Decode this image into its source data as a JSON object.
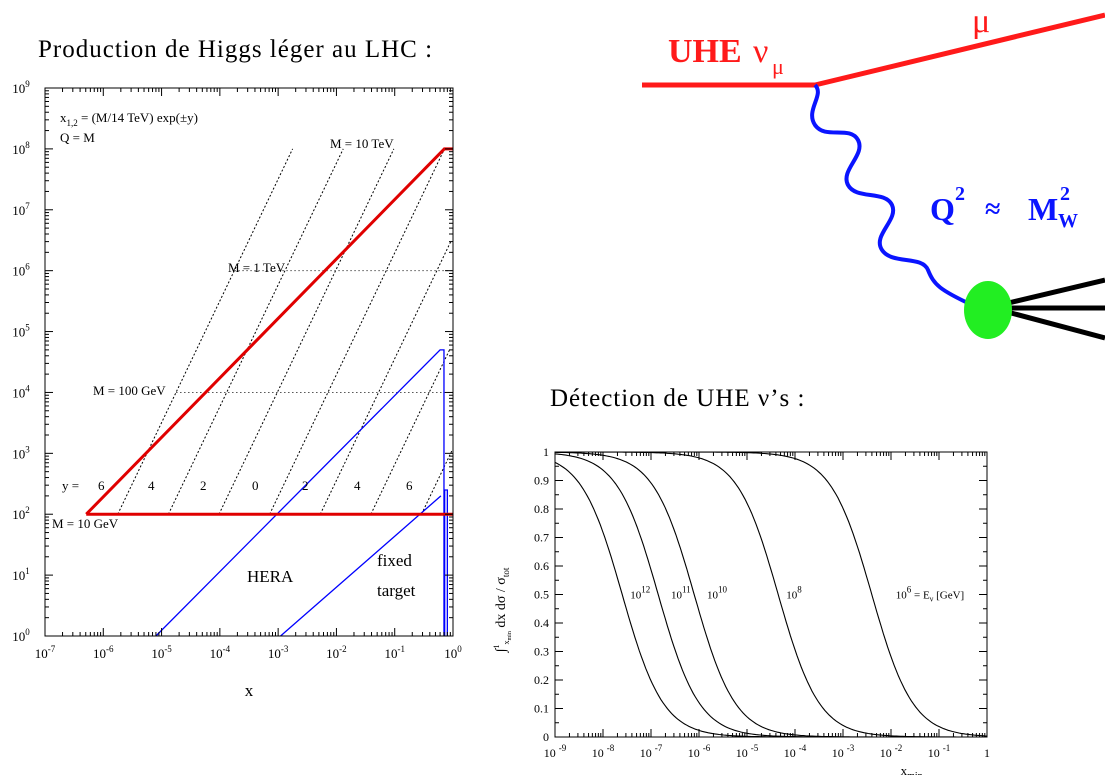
{
  "left_heading": "Production de Higgs léger au LHC :",
  "right_heading": "Détection de UHE ν’s :",
  "diagram": {
    "incoming_label": "UHE",
    "incoming_symbol": "ν",
    "incoming_sub": "μ",
    "outgoing_label": "μ",
    "q_label": "Q",
    "q_sup": "2",
    "approx": "≈",
    "m_label": "M",
    "m_sup": "2",
    "m_sub": "W",
    "colors": {
      "lepton": "#ff1a1a",
      "boson": "#0a14ff",
      "blob": "#22ee22",
      "jets": "#000000"
    }
  },
  "chart_data": [
    {
      "type": "line",
      "xscale": "log",
      "yscale": "log",
      "xlim": [
        1e-07,
        1
      ],
      "ylim": [
        1,
        1000000000.0
      ],
      "xlabel": "x",
      "x_ticks": [
        "10-7",
        "10-6",
        "10-5",
        "10-4",
        "10-3",
        "10-2",
        "10-1",
        "100"
      ],
      "y_ticks": [
        "100",
        "101",
        "102",
        "103",
        "104",
        "105",
        "106",
        "107",
        "108",
        "109"
      ],
      "formula_lines": [
        "x1,2 = (M/14 TeV) exp(±y)",
        "Q = M"
      ],
      "formula_base": "x",
      "formula_sub": "1,2",
      "formula_rest": " = (M/14 TeV) exp(±y)",
      "formula_q": "Q = M",
      "annotations": {
        "m10tev": "M = 10 TeV",
        "m1tev": "M = 1 TeV",
        "m100gev": "M = 100 GeV",
        "m10gev": "M = 10 GeV",
        "y_eq": "y =",
        "hera": "HERA",
        "fixed1": "fixed",
        "fixed2": "target"
      },
      "rapidity_labels": [
        "6",
        "4",
        "2",
        "0",
        "2",
        "4",
        "6"
      ],
      "rapidity_values": [
        6,
        4,
        2,
        0,
        -2,
        -4,
        -6
      ],
      "mass_levels_gev": [
        10,
        100,
        1000,
        10000
      ],
      "lhc_boundary": {
        "color": "#ff0000",
        "points": [
          [
            5.1e-07,
            100
          ],
          [
            0.71,
            100000000.0
          ],
          [
            1,
            100000000.0
          ]
        ],
        "bottom": [
          [
            5.1e-07,
            100
          ],
          [
            1,
            100
          ]
        ]
      },
      "hera_region": {
        "color": "#0000ff",
        "points": [
          [
            8e-06,
            1
          ],
          [
            0.6,
            50000
          ],
          [
            0.7,
            50000
          ],
          [
            0.7,
            1
          ]
        ]
      },
      "fixed_target": {
        "color": "#0000ff",
        "points": [
          [
            0.0011,
            1
          ],
          [
            0.62,
            200
          ]
        ],
        "edge": [
          [
            0.72,
            1
          ],
          [
            0.72,
            250
          ],
          [
            0.8,
            250
          ],
          [
            0.8,
            1
          ]
        ]
      }
    },
    {
      "type": "line",
      "xscale": "log",
      "xlim": [
        1e-09,
        1
      ],
      "ylim": [
        0,
        1
      ],
      "xlabel": "x",
      "xlabel_sub": "min",
      "ylabel": "∫",
      "x_ticks": [
        "10-9",
        "10-8",
        "10-7",
        "10-6",
        "10-5",
        "10-4",
        "10-3",
        "10-2",
        "10-1",
        "1"
      ],
      "y_ticks": [
        "0",
        "0.1",
        "0.2",
        "0.3",
        "0.4",
        "0.5",
        "0.6",
        "0.7",
        "0.8",
        "0.9",
        "1"
      ],
      "series": [
        {
          "name": "10",
          "sup": "12",
          "center": -7.6,
          "width": 0.95,
          "label_x": -7.6
        },
        {
          "name": "10",
          "sup": "11",
          "center": -6.85,
          "width": 0.95,
          "label_x": -6.75
        },
        {
          "name": "10",
          "sup": "10",
          "center": -6.1,
          "width": 0.95,
          "label_x": -6.0
        },
        {
          "name": "10",
          "sup": "8",
          "center": -4.35,
          "width": 0.95,
          "label_x": -4.35
        },
        {
          "name": "10",
          "sup": "6",
          "center": -2.4,
          "width": 0.95,
          "label_x": -1.9
        }
      ],
      "series_suffix": " = E",
      "series_suffix_sub": "ν",
      "series_suffix_unit": " [GeV]"
    }
  ]
}
